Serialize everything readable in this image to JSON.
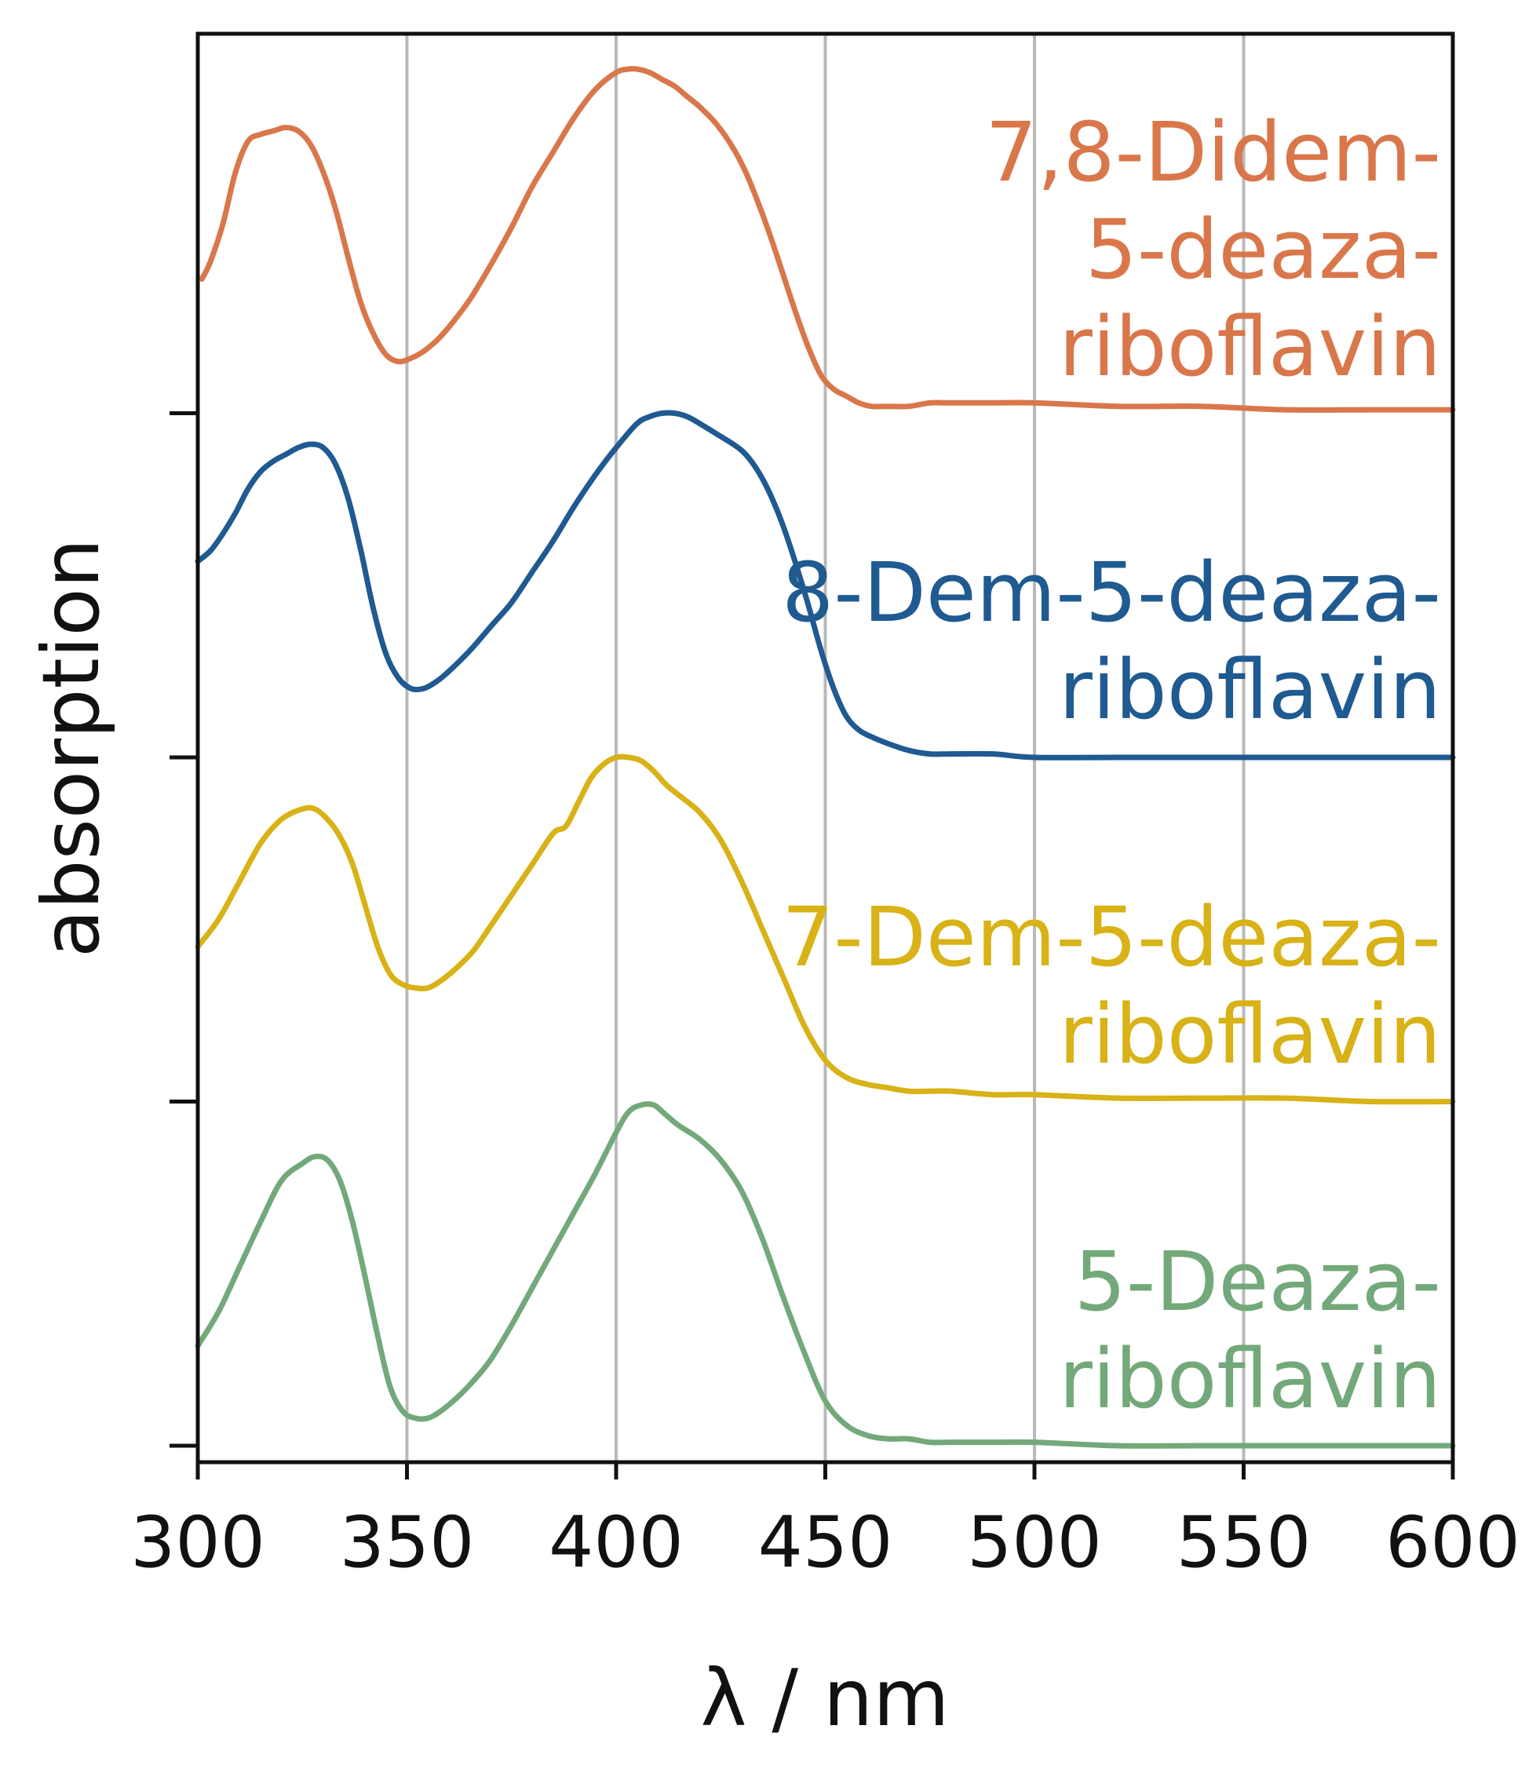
{
  "chart_data": {
    "type": "line",
    "title": "",
    "xlabel": "λ / nm",
    "ylabel": "absorption",
    "xlim": [
      300,
      600
    ],
    "ylim": [
      -0.1,
      4.1
    ],
    "grid": "vertical",
    "x_ticks": [
      300,
      350,
      400,
      450,
      500,
      550,
      600
    ],
    "x_tick_labels": [
      "300",
      "350",
      "400",
      "450",
      "500",
      "550",
      "600"
    ],
    "y_ticks": [
      0,
      1,
      2,
      3
    ],
    "layout_note": "stacked spectra, each offset by 1 unit",
    "series": [
      {
        "name": "7,8-Didem-5-deaza-riboflavin",
        "label_lines": [
          "7,8-Didem-",
          "5-deaza-",
          "riboflavin"
        ],
        "color": "#d9774b",
        "offset": 3,
        "x": [
          301,
          303,
          306,
          309,
          312,
          315,
          318,
          321,
          324,
          327,
          330,
          333,
          336,
          339,
          342,
          345,
          348,
          351,
          354,
          357,
          360,
          365,
          370,
          375,
          380,
          385,
          390,
          395,
          400,
          403,
          405,
          408,
          411,
          414,
          417,
          420,
          424,
          428,
          431,
          434,
          437,
          440,
          443,
          446,
          449,
          452,
          455,
          458,
          461,
          465,
          470,
          475,
          480,
          490,
          500,
          520,
          540,
          560,
          580,
          600
        ],
        "y": [
          0.39,
          0.44,
          0.55,
          0.7,
          0.79,
          0.81,
          0.82,
          0.83,
          0.82,
          0.78,
          0.7,
          0.59,
          0.45,
          0.32,
          0.23,
          0.17,
          0.15,
          0.16,
          0.18,
          0.21,
          0.25,
          0.33,
          0.43,
          0.54,
          0.66,
          0.76,
          0.86,
          0.94,
          0.99,
          1.0,
          1.0,
          0.99,
          0.97,
          0.95,
          0.92,
          0.89,
          0.84,
          0.77,
          0.7,
          0.61,
          0.51,
          0.4,
          0.29,
          0.19,
          0.11,
          0.07,
          0.05,
          0.03,
          0.02,
          0.02,
          0.02,
          0.03,
          0.03,
          0.03,
          0.03,
          0.02,
          0.02,
          0.01,
          0.01,
          0.01
        ]
      },
      {
        "name": "8-Dem-5-deaza-riboflavin",
        "label_lines": [
          "8-Dem-5-deaza-",
          "riboflavin"
        ],
        "color": "#1f5a91",
        "offset": 2,
        "x": [
          300,
          303,
          306,
          309,
          312,
          315,
          318,
          321,
          324,
          327,
          330,
          333,
          336,
          339,
          342,
          345,
          348,
          351,
          354,
          357,
          360,
          365,
          370,
          375,
          380,
          385,
          390,
          395,
          400,
          405,
          408,
          411,
          414,
          417,
          420,
          424,
          428,
          431,
          434,
          437,
          440,
          443,
          446,
          449,
          452,
          455,
          458,
          461,
          465,
          470,
          475,
          480,
          490,
          500,
          520,
          540,
          560,
          580,
          600
        ],
        "y": [
          0.57,
          0.6,
          0.65,
          0.71,
          0.78,
          0.83,
          0.86,
          0.88,
          0.9,
          0.91,
          0.9,
          0.85,
          0.75,
          0.6,
          0.43,
          0.3,
          0.23,
          0.2,
          0.2,
          0.22,
          0.25,
          0.31,
          0.38,
          0.45,
          0.54,
          0.63,
          0.73,
          0.82,
          0.9,
          0.97,
          0.99,
          1.0,
          1.0,
          0.99,
          0.97,
          0.94,
          0.91,
          0.88,
          0.83,
          0.76,
          0.67,
          0.56,
          0.44,
          0.31,
          0.2,
          0.12,
          0.08,
          0.06,
          0.04,
          0.02,
          0.01,
          0.01,
          0.01,
          0.0,
          0.0,
          0.0,
          0.0,
          0.0,
          0.0
        ]
      },
      {
        "name": "7-Dem-5-deaza-riboflavin",
        "label_lines": [
          "7-Dem-5-deaza-",
          "riboflavin"
        ],
        "color": "#d8b216",
        "offset": 1,
        "x": [
          300,
          305,
          310,
          315,
          320,
          325,
          328,
          331,
          334,
          337,
          340,
          343,
          346,
          349,
          352,
          355,
          358,
          362,
          366,
          370,
          375,
          380,
          385,
          388,
          391,
          394,
          397,
          400,
          403,
          406,
          409,
          412,
          415,
          420,
          425,
          430,
          435,
          440,
          445,
          450,
          455,
          460,
          465,
          470,
          475,
          480,
          490,
          500,
          520,
          540,
          560,
          580,
          600
        ],
        "y": [
          0.45,
          0.53,
          0.64,
          0.75,
          0.82,
          0.85,
          0.85,
          0.82,
          0.77,
          0.69,
          0.57,
          0.45,
          0.37,
          0.34,
          0.33,
          0.33,
          0.35,
          0.39,
          0.44,
          0.51,
          0.6,
          0.69,
          0.78,
          0.8,
          0.87,
          0.94,
          0.98,
          1.0,
          1.0,
          0.99,
          0.96,
          0.92,
          0.89,
          0.84,
          0.76,
          0.64,
          0.5,
          0.36,
          0.22,
          0.12,
          0.07,
          0.05,
          0.04,
          0.03,
          0.03,
          0.03,
          0.02,
          0.02,
          0.01,
          0.01,
          0.01,
          0.0,
          0.0
        ]
      },
      {
        "name": "5-Deaza-riboflavin",
        "label_lines": [
          "5-Deaza-",
          "riboflavin"
        ],
        "color": "#73a97a",
        "offset": 0,
        "x": [
          300,
          305,
          310,
          315,
          320,
          325,
          328,
          331,
          334,
          337,
          340,
          343,
          346,
          349,
          352,
          355,
          358,
          362,
          366,
          370,
          375,
          380,
          385,
          390,
          395,
          400,
          403,
          406,
          409,
          412,
          415,
          420,
          425,
          430,
          435,
          440,
          445,
          450,
          455,
          460,
          465,
          470,
          475,
          480,
          490,
          500,
          520,
          540,
          560,
          580,
          600
        ],
        "y": [
          0.29,
          0.39,
          0.52,
          0.65,
          0.77,
          0.82,
          0.84,
          0.83,
          0.77,
          0.65,
          0.49,
          0.32,
          0.17,
          0.1,
          0.08,
          0.08,
          0.1,
          0.14,
          0.19,
          0.25,
          0.35,
          0.46,
          0.57,
          0.68,
          0.79,
          0.91,
          0.97,
          0.99,
          0.99,
          0.96,
          0.93,
          0.89,
          0.83,
          0.74,
          0.6,
          0.43,
          0.27,
          0.13,
          0.06,
          0.03,
          0.02,
          0.02,
          0.01,
          0.01,
          0.01,
          0.01,
          0.0,
          0.0,
          0.0,
          0.0,
          0.0
        ]
      }
    ]
  }
}
